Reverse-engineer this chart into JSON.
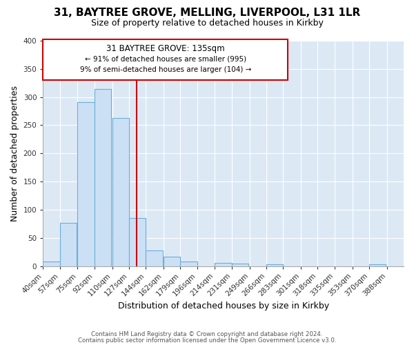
{
  "title": "31, BAYTREE GROVE, MELLING, LIVERPOOL, L31 1LR",
  "subtitle": "Size of property relative to detached houses in Kirkby",
  "xlabel": "Distribution of detached houses by size in Kirkby",
  "ylabel": "Number of detached properties",
  "bar_left_edges": [
    40,
    57,
    75,
    92,
    110,
    127,
    144,
    162,
    179,
    196,
    214,
    231,
    249,
    266,
    283,
    301,
    318,
    335,
    353,
    370
  ],
  "bar_heights": [
    8,
    77,
    291,
    314,
    263,
    85,
    28,
    16,
    8,
    0,
    5,
    4,
    0,
    3,
    0,
    0,
    0,
    0,
    0,
    3
  ],
  "bin_width": 17,
  "tick_labels": [
    "40sqm",
    "57sqm",
    "75sqm",
    "92sqm",
    "110sqm",
    "127sqm",
    "144sqm",
    "162sqm",
    "179sqm",
    "196sqm",
    "214sqm",
    "231sqm",
    "249sqm",
    "266sqm",
    "283sqm",
    "301sqm",
    "318sqm",
    "335sqm",
    "353sqm",
    "370sqm",
    "388sqm"
  ],
  "tick_positions": [
    40,
    57,
    75,
    92,
    110,
    127,
    144,
    162,
    179,
    196,
    214,
    231,
    249,
    266,
    283,
    301,
    318,
    335,
    353,
    370,
    388
  ],
  "bar_color": "#cce0f5",
  "bar_edge_color": "#6aaed6",
  "ref_line_x": 135,
  "ref_line_color": "#cc0000",
  "ylim": [
    0,
    400
  ],
  "xlim": [
    40,
    405
  ],
  "yticks": [
    0,
    50,
    100,
    150,
    200,
    250,
    300,
    350,
    400
  ],
  "annotation_line1": "31 BAYTREE GROVE: 135sqm",
  "annotation_line2": "← 91% of detached houses are smaller (995)",
  "annotation_line3": "9% of semi-detached houses are larger (104) →",
  "footer1": "Contains HM Land Registry data © Crown copyright and database right 2024.",
  "footer2": "Contains public sector information licensed under the Open Government Licence v3.0.",
  "fig_bg_color": "#ffffff",
  "plot_bg_color": "#dce9f5",
  "grid_color": "#ffffff",
  "title_fontsize": 11,
  "subtitle_fontsize": 9,
  "axis_label_fontsize": 9,
  "tick_fontsize": 7.5,
  "annotation_box_color": "#cc0000",
  "annotation_box_facecolor": "#ffffff"
}
